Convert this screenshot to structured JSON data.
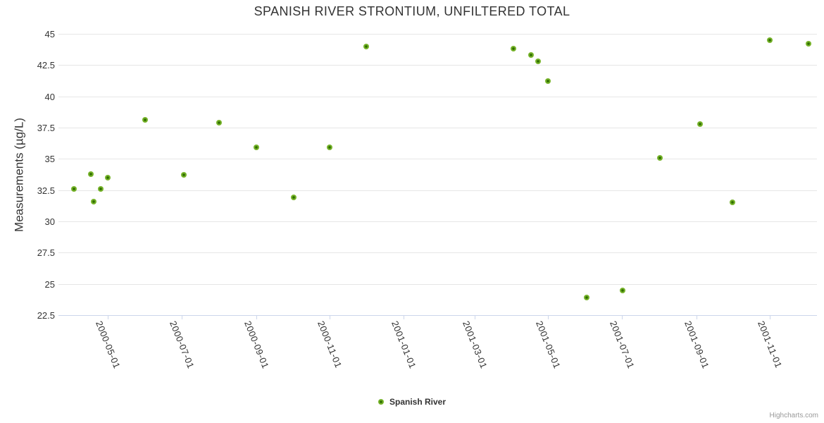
{
  "chart": {
    "title": "SPANISH RIVER STRONTIUM, UNFILTERED TOTAL",
    "y_axis_title": "Measurements (µg/L)",
    "legend": {
      "label": "Spanish River"
    },
    "credits": "Highcharts.com",
    "colors": {
      "point_outer": "#76b32a",
      "point_center": "#2f6e00",
      "grid": "#e6e6e6",
      "axis_line": "#ccd6eb",
      "text": "#333333",
      "credits_text": "#999999"
    }
  },
  "chart_data": {
    "type": "scatter",
    "title": "SPANISH RIVER STRONTIUM, UNFILTERED TOTAL",
    "xlabel": "",
    "ylabel": "Measurements (µg/L)",
    "ylim": [
      22.5,
      45
    ],
    "y_ticks": [
      45,
      42.5,
      40,
      37.5,
      35,
      32.5,
      30,
      27.5,
      25,
      22.5
    ],
    "x_ticks": [
      "2000-05-01",
      "2000-07-01",
      "2000-09-01",
      "2000-11-01",
      "2001-01-01",
      "2001-03-01",
      "2001-05-01",
      "2001-07-01",
      "2001-09-01",
      "2001-11-01"
    ],
    "x_range": [
      "2000-03-21",
      "2001-12-10"
    ],
    "grid": "horizontal-only",
    "legend_position": "bottom-center",
    "series": [
      {
        "name": "Spanish River",
        "points": [
          {
            "date": "2000-04-03",
            "value": 32.6
          },
          {
            "date": "2000-04-17",
            "value": 33.8
          },
          {
            "date": "2000-04-19",
            "value": 31.6
          },
          {
            "date": "2000-04-25",
            "value": 32.6
          },
          {
            "date": "2000-05-01",
            "value": 33.5
          },
          {
            "date": "2000-06-01",
            "value": 38.1
          },
          {
            "date": "2000-07-03",
            "value": 33.7
          },
          {
            "date": "2000-08-01",
            "value": 37.9
          },
          {
            "date": "2000-09-01",
            "value": 35.9
          },
          {
            "date": "2000-10-02",
            "value": 31.9
          },
          {
            "date": "2000-11-01",
            "value": 35.9
          },
          {
            "date": "2000-12-01",
            "value": 44.0
          },
          {
            "date": "2001-04-02",
            "value": 43.8
          },
          {
            "date": "2001-04-17",
            "value": 43.3
          },
          {
            "date": "2001-04-23",
            "value": 42.8
          },
          {
            "date": "2001-05-01",
            "value": 41.2
          },
          {
            "date": "2001-06-02",
            "value": 23.9
          },
          {
            "date": "2001-07-02",
            "value": 24.5
          },
          {
            "date": "2001-08-02",
            "value": 35.1
          },
          {
            "date": "2001-09-04",
            "value": 37.8
          },
          {
            "date": "2001-10-01",
            "value": 31.5
          },
          {
            "date": "2001-11-01",
            "value": 44.5
          },
          {
            "date": "2001-12-03",
            "value": 44.2
          }
        ]
      }
    ]
  }
}
